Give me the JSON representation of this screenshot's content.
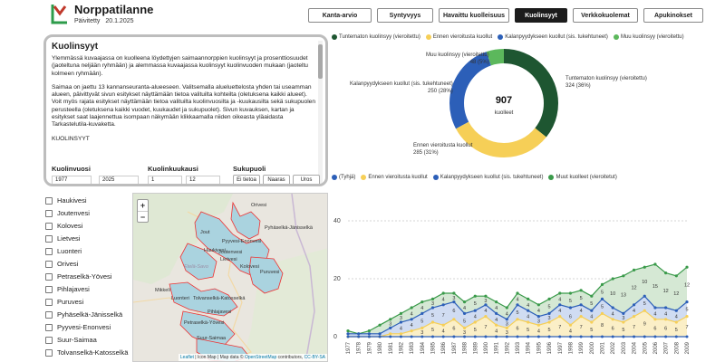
{
  "app": {
    "title": "Norppatilanne",
    "updated_label": "Päivitetty",
    "updated_date": "20.1.2025"
  },
  "tabs": [
    {
      "label": "Kanta-arvio",
      "active": false
    },
    {
      "label": "Syntyvyys",
      "active": false
    },
    {
      "label": "Havaittu kuolleisuus",
      "active": false
    },
    {
      "label": "Kuolinsyyt",
      "active": true
    },
    {
      "label": "Verkkokuolemat",
      "active": false
    },
    {
      "label": "Apukinokset",
      "active": false
    }
  ],
  "info": {
    "title": "Kuolinsyyt",
    "p1": "Ylemmässä kuvaajassa on kuolleena löydettyjen saimaannorppien kuolinsyyt ja prosenttiosuudet (jaoteltuna neljään ryhmään) ja alemmassa kuvaajassa kuolinsyyt kuolinvuoden mukaan (jaoteltu kolmeen ryhmään).",
    "p2": "Saimaa on jaettu 13 kannanseuranta-alueeseen. Valitsemalla alueluettelosta yhden tai useamman alueen, päivittyvät sivun esitykset näyttämään tietoa valituilta kohteilta (oletuksena kaikki alueet). Voit myös rajata esitykset näyttämään tietoa valituilta kuolinvuosilta ja -kuukausilta sekä sukupuolen perusteella (oletuksena kaikki vuodet, kuukaudet ja sukupuolet). Sivun kuvauksen, kartan ja esitykset saat laajennettua isompaan näkymään klikkaamalla niiden oikeasta yläaidasta Tarkastelutila-kuvaketta.",
    "section": "KUOLINSYYT",
    "year_label": "Kuolinvuosi",
    "year_from": "1977",
    "year_to": "2025",
    "month_label": "Kuolinkuukausi",
    "month_from": "1",
    "month_to": "12",
    "sex_label": "Sukupuoli",
    "sex_options": [
      "Ei tietoa",
      "Naaras",
      "Uros"
    ]
  },
  "areas": [
    "Haukivesi",
    "Joutenvesi",
    "Kolovesi",
    "Lietvesi",
    "Luonteri",
    "Orivesi",
    "Petraselkä-Yövesi",
    "Pihlajavesi",
    "Puruvesi",
    "Pyhäselkä-Jänisselkä",
    "Pyyvesi-Enonvesi",
    "Suur-Saimaa",
    "Tolvanselkä-Katosselkä"
  ],
  "map": {
    "zoom_in": "+",
    "zoom_out": "−",
    "attribution_leaflet": "Leaflet",
    "attribution_sep1": "| Icon Map | Map data ©",
    "attribution_osm": "OpenStreetMap",
    "attribution_mid": "contributors,",
    "attribution_cc": "CC-BY-SA",
    "labels": [
      "Pyhäselkä-Jänisselkä",
      "Orivesi",
      "Jout",
      "Pyyvesi-Enonvesi",
      "Haukivesi",
      "Joutenvesi",
      "Lietvesi",
      "Kolovesi",
      "Puruvesi",
      "Mikkeli",
      "Luonteri",
      "Tolvanselkä-Katosselkä",
      "Pihlajavesi",
      "Petraselkä-Yövesi",
      "Suur-Saimaa",
      "Etelä-Savo"
    ]
  },
  "donut": {
    "center_value": "907",
    "center_label": "kuolleet",
    "legend": [
      {
        "label": "Tuntematon kuolinsyy (vieroitettu)",
        "color": "#1e5631"
      },
      {
        "label": "Ennen vieroitusta kuollut",
        "color": "#f6cf57"
      },
      {
        "label": "Kalanpyydykseen kuollut (sis. tukehtuneet)",
        "color": "#2c5fb8"
      },
      {
        "label": "Muu kuolinsyy (vieroitettu)",
        "color": "#5cb85c"
      }
    ],
    "labels": [
      {
        "name": "Muu kuolinsyy (vieroitettu)",
        "value": "48 (5%)"
      },
      {
        "name": "Kalanpyydykseen kuollut (sis. tukehtuneet)",
        "value": "250 (28%)"
      },
      {
        "name": "Tuntematon kuolinsyy (vieroitettu)",
        "value": "324 (36%)"
      },
      {
        "name": "Ennen vieroitusta kuollut",
        "value": "285 (31%)"
      }
    ]
  },
  "chart_data": [
    {
      "type": "pie",
      "categories": [
        "Tuntematon kuolinsyy (vieroitettu)",
        "Ennen vieroitusta kuollut",
        "Kalanpyydykseen kuollut (sis. tukehtuneet)",
        "Muu kuolinsyy (vieroitettu)"
      ],
      "values": [
        324,
        285,
        250,
        48
      ],
      "percent_labels": [
        "36%",
        "31%",
        "28%",
        "5%"
      ],
      "colors": [
        "#1e5631",
        "#f6cf57",
        "#2c5fb8",
        "#5cb85c"
      ],
      "total": 907,
      "total_label": "kuolleet"
    },
    {
      "type": "area",
      "x": [
        "1977",
        "1978",
        "1979",
        "1980",
        "1981",
        "1982",
        "1983",
        "1984",
        "1985",
        "1986",
        "1987",
        "1988",
        "1989",
        "1990",
        "1991",
        "1992",
        "1993",
        "1994",
        "1995",
        "1996",
        "1997",
        "1998",
        "1999",
        "2000",
        "2001",
        "2002",
        "2003",
        "2004",
        "2005",
        "2006",
        "2007",
        "2008",
        "2009"
      ],
      "ylim": [
        0,
        40
      ],
      "yticks": [
        0,
        20,
        40
      ],
      "stacked": true,
      "series": [
        {
          "name": "(Tyhjä)",
          "color": "#2c5fb8",
          "values": [
            0,
            0,
            0,
            0,
            0,
            0,
            0,
            0,
            0,
            0,
            0,
            0,
            0,
            0,
            0,
            0,
            0,
            0,
            0,
            0,
            0,
            0,
            0,
            0,
            0,
            0,
            0,
            0,
            0,
            0,
            0,
            0,
            0
          ]
        },
        {
          "name": "Ennen vieroitusta kuollut",
          "color": "#f6cf57",
          "values": [
            0,
            0,
            0,
            0,
            1,
            1,
            2,
            3,
            5,
            4,
            6,
            3,
            5,
            7,
            4,
            3,
            6,
            5,
            4,
            5,
            7,
            4,
            7,
            5,
            8,
            6,
            5,
            7,
            9,
            6,
            6,
            5,
            7
          ]
        },
        {
          "name": "Kalanpyydykseen kuollut (sis. tukehtuneet)",
          "color": "#2c5fb8",
          "values": [
            1,
            1,
            1,
            1,
            2,
            4,
            4,
            5,
            5,
            7,
            6,
            5,
            4,
            4,
            4,
            3,
            5,
            4,
            3,
            3,
            4,
            6,
            4,
            4,
            5,
            4,
            3,
            4,
            5,
            4,
            4,
            4,
            5
          ]
        },
        {
          "name": "Muut kuolleet (vieroitetut)",
          "color": "#3a9a4a",
          "values": [
            1,
            0,
            1,
            3,
            3,
            3,
            4,
            4,
            3,
            4,
            3,
            4,
            5,
            3,
            4,
            4,
            4,
            4,
            4,
            5,
            4,
            5,
            5,
            5,
            5,
            10,
            13,
            12,
            10,
            15,
            12,
            12,
            12
          ]
        }
      ]
    }
  ],
  "area_chart": {
    "legend": [
      {
        "label": "(Tyhjä)",
        "color": "#2c5fb8"
      },
      {
        "label": "Ennen vieroitusta kuollut",
        "color": "#f6cf57"
      },
      {
        "label": "Kalanpyydykseen kuollut (sis. tukehtuneet)",
        "color": "#2c5fb8"
      },
      {
        "label": "Muut kuolleet (vieroitetut)",
        "color": "#3a9a4a"
      }
    ]
  }
}
